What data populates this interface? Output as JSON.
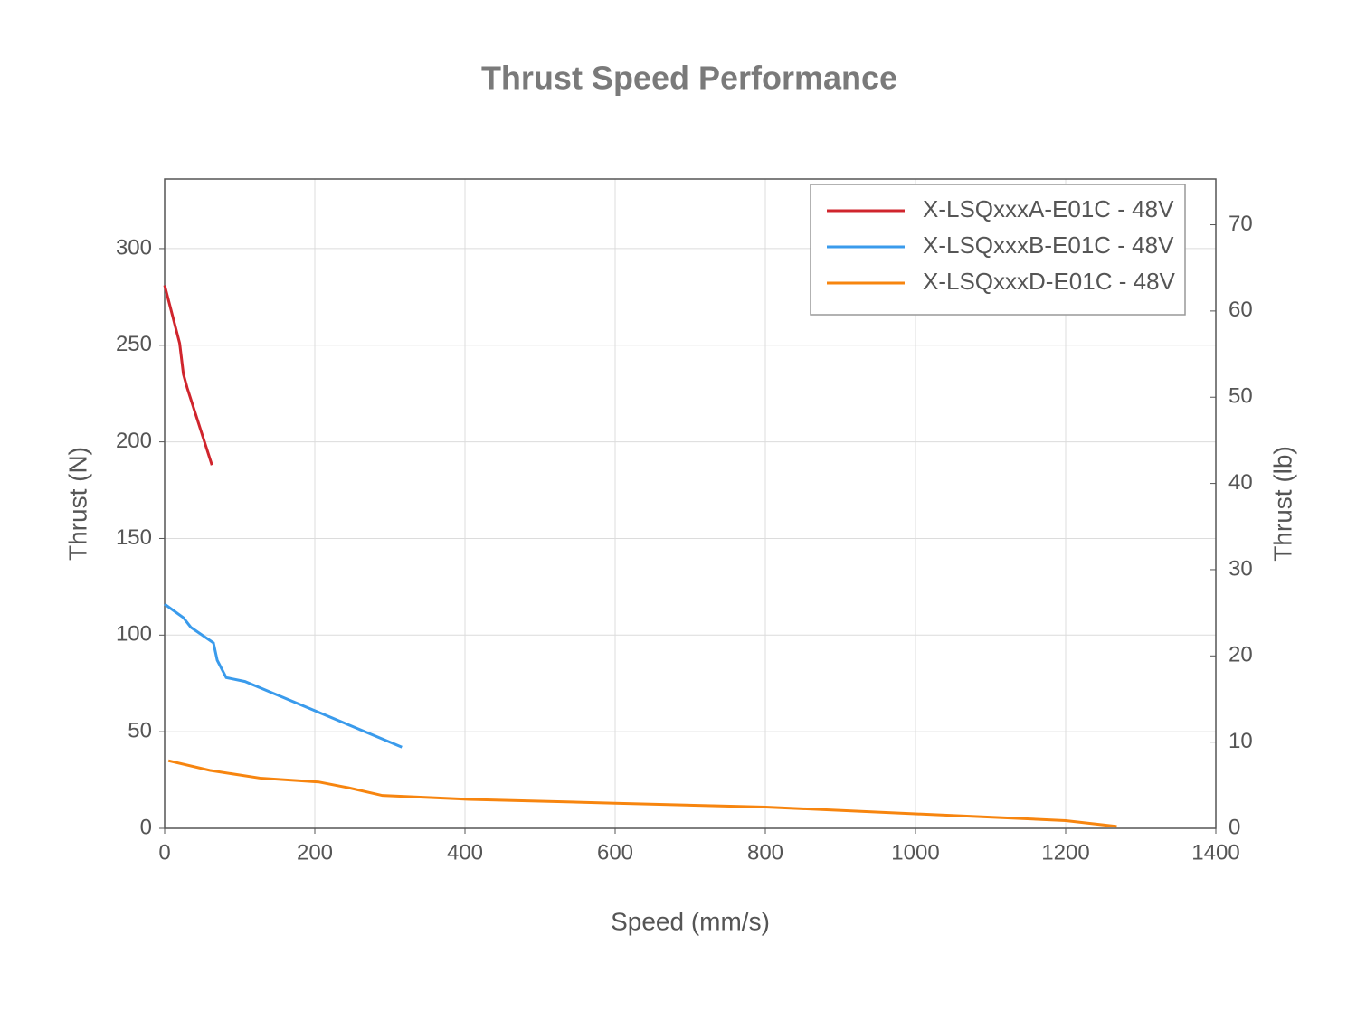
{
  "chart_data": {
    "type": "line",
    "title": "Thrust Speed Performance",
    "x_label": "Speed (mm/s)",
    "y_label": "Thrust (N)",
    "y2_label": "Thrust (lb)",
    "xlim": [
      0,
      1400
    ],
    "xticks": [
      0,
      200,
      400,
      600,
      800,
      1000,
      1200,
      1400
    ],
    "ylim": [
      0,
      336
    ],
    "yticks": [
      0,
      50,
      100,
      150,
      200,
      250,
      300
    ],
    "y2lim": [
      0,
      75.3
    ],
    "y2ticks": [
      0,
      10,
      20,
      30,
      40,
      50,
      60,
      70
    ],
    "grid": true,
    "legend": "upper-right",
    "series": [
      {
        "name": "X-LSQxxxA-E01C - 48V",
        "color": "#d0252d",
        "x": [
          0,
          20,
          25,
          30,
          63
        ],
        "values": [
          281,
          251,
          235,
          228,
          188
        ]
      },
      {
        "name": "X-LSQxxxB-E01C - 48V",
        "color": "#3a9bec",
        "x": [
          0,
          25,
          35,
          65,
          70,
          82,
          107,
          316
        ],
        "values": [
          116,
          109,
          104,
          96,
          87,
          78,
          76,
          42
        ]
      },
      {
        "name": "X-LSQxxxD-E01C - 48V",
        "color": "#f7850f",
        "x": [
          5,
          60,
          127,
          205,
          245,
          290,
          405,
          600,
          800,
          1000,
          1200,
          1268
        ],
        "values": [
          35,
          30,
          26,
          24,
          21,
          17,
          15,
          13,
          11,
          7.5,
          4,
          1
        ]
      }
    ]
  }
}
